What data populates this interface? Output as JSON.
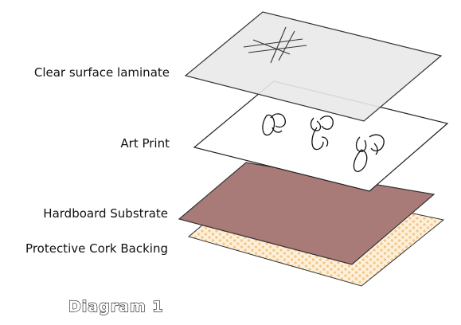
{
  "labels": {
    "laminate": "Clear surface laminate",
    "print": "Art Print",
    "substrate": "Hardboard Substrate",
    "cork": "Protective Cork Backing"
  },
  "caption": "Diagram 1",
  "colors": {
    "laminate_fill": "#e9e9e9",
    "print_fill": "#ffffff",
    "substrate_fill": "#a87a78",
    "cork_fill": "#fdf1dc",
    "cork_dots": "#f5c98e",
    "outline": "#222222"
  }
}
